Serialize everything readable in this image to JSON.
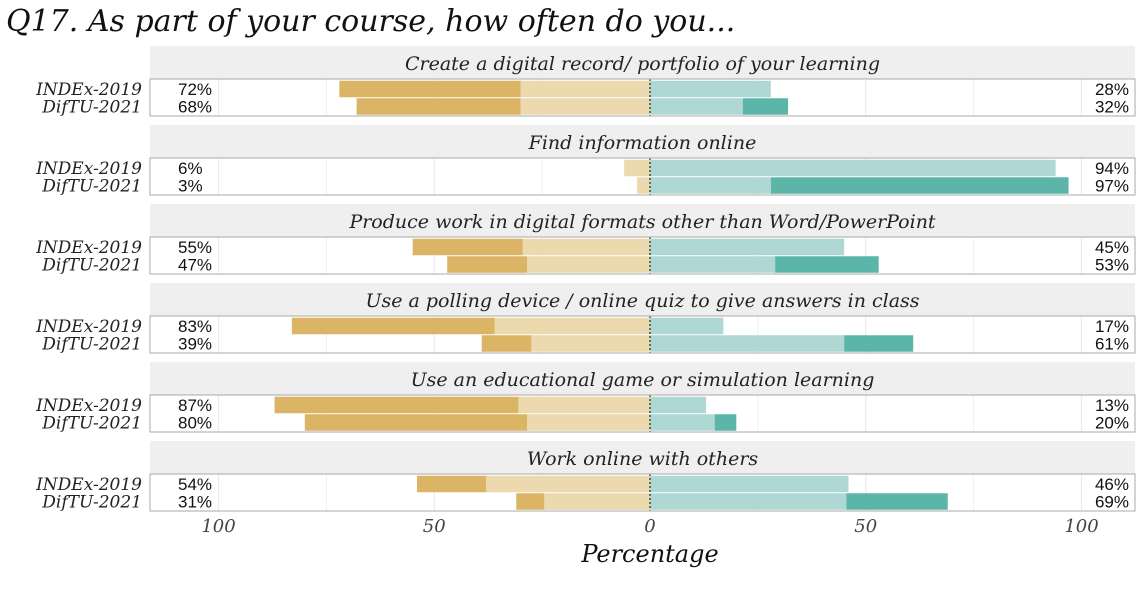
{
  "chart_data": {
    "type": "bar",
    "title": "Q17. As part of your course, how often do you...",
    "xlabel": "Percentage",
    "ylabel": "",
    "xlim": [
      -100,
      100
    ],
    "x_ticks": [
      -100,
      -50,
      0,
      50,
      100
    ],
    "x_tick_labels": [
      "100",
      "50",
      "0",
      "50",
      "100"
    ],
    "grid": true,
    "rows": [
      "INDEx-2019",
      "DifTU-2021"
    ],
    "colors": {
      "neg_strong": "#dbb466",
      "neg_light": "#ecd9ad",
      "pos_light": "#afd8d4",
      "pos_strong": "#5bb5a8",
      "strip_bg": "#efefef",
      "panel_border": "#aaaaaa",
      "grid": "#ebebeb"
    },
    "facets": [
      {
        "label": "Create a digital record/ portfolio of your learning",
        "rows": [
          {
            "name": "INDEx-2019",
            "neg_label": "72%",
            "pos_label": "28%",
            "neg_strong": 42,
            "neg_light": 30,
            "pos_light": 28,
            "pos_strong": 0
          },
          {
            "name": "DifTU-2021",
            "neg_label": "68%",
            "pos_label": "32%",
            "neg_strong": 38,
            "neg_light": 30,
            "pos_light": 21.5,
            "pos_strong": 10.5
          }
        ]
      },
      {
        "label": "Find information online",
        "rows": [
          {
            "name": "INDEx-2019",
            "neg_label": "6%",
            "pos_label": "94%",
            "neg_strong": 0,
            "neg_light": 6,
            "pos_light": 94,
            "pos_strong": 0
          },
          {
            "name": "DifTU-2021",
            "neg_label": "3%",
            "pos_label": "97%",
            "neg_strong": 0,
            "neg_light": 3,
            "pos_light": 28,
            "pos_strong": 69
          }
        ]
      },
      {
        "label": "Produce work in digital formats other than Word/PowerPoint",
        "rows": [
          {
            "name": "INDEx-2019",
            "neg_label": "55%",
            "pos_label": "45%",
            "neg_strong": 25.5,
            "neg_light": 29.5,
            "pos_light": 45,
            "pos_strong": 0
          },
          {
            "name": "DifTU-2021",
            "neg_label": "47%",
            "pos_label": "53%",
            "neg_strong": 18.5,
            "neg_light": 28.5,
            "pos_light": 29,
            "pos_strong": 24
          }
        ]
      },
      {
        "label": "Use a polling device / online quiz to give answers in class",
        "rows": [
          {
            "name": "INDEx-2019",
            "neg_label": "83%",
            "pos_label": "17%",
            "neg_strong": 47,
            "neg_light": 36,
            "pos_light": 17,
            "pos_strong": 0
          },
          {
            "name": "DifTU-2021",
            "neg_label": "39%",
            "pos_label": "61%",
            "neg_strong": 11.5,
            "neg_light": 27.5,
            "pos_light": 45,
            "pos_strong": 16
          }
        ]
      },
      {
        "label": "Use an educational game or simulation learning",
        "rows": [
          {
            "name": "INDEx-2019",
            "neg_label": "87%",
            "pos_label": "13%",
            "neg_strong": 56.5,
            "neg_light": 30.5,
            "pos_light": 13,
            "pos_strong": 0
          },
          {
            "name": "DifTU-2021",
            "neg_label": "80%",
            "pos_label": "20%",
            "neg_strong": 51.5,
            "neg_light": 28.5,
            "pos_light": 15,
            "pos_strong": 5
          }
        ]
      },
      {
        "label": "Work online with others",
        "rows": [
          {
            "name": "INDEx-2019",
            "neg_label": "54%",
            "pos_label": "46%",
            "neg_strong": 16,
            "neg_light": 38,
            "pos_light": 46,
            "pos_strong": 0
          },
          {
            "name": "DifTU-2021",
            "neg_label": "31%",
            "pos_label": "69%",
            "neg_strong": 6.5,
            "neg_light": 24.5,
            "pos_light": 45.5,
            "pos_strong": 23.5
          }
        ]
      }
    ]
  }
}
